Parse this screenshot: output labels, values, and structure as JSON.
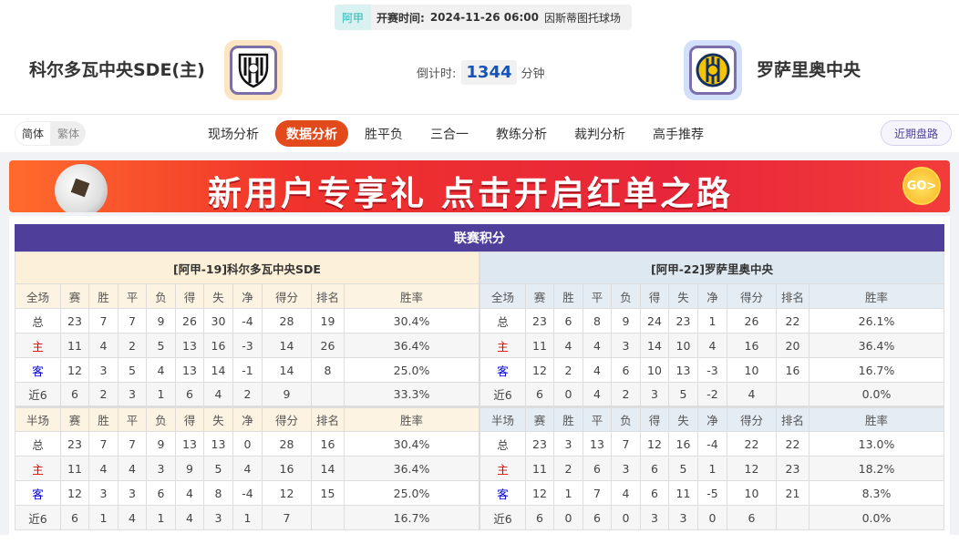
{
  "match": {
    "league": "阿甲",
    "kickoff_label": "开赛时间:",
    "kickoff": "2024-11-26 06:00",
    "venue": "因斯蒂图托球场",
    "home": "科尔多瓦中央SDE(主)",
    "away": "罗萨里奥中央",
    "countdown_label": "倒计时:",
    "countdown": "1344",
    "countdown_unit": "分钟"
  },
  "nav": {
    "lang": [
      "简体",
      "繁体"
    ],
    "tabs": [
      "现场分析",
      "数据分析",
      "胜平负",
      "三合一",
      "教练分析",
      "裁判分析",
      "高手推荐"
    ],
    "active": "数据分析",
    "recent": "近期盘路"
  },
  "banner": {
    "text": "新用户专享礼 点击开启红单之路",
    "go": "GO>"
  },
  "standings": {
    "title": "联赛积分",
    "full_headers": [
      "全场",
      "赛",
      "胜",
      "平",
      "负",
      "得",
      "失",
      "净",
      "得分",
      "排名",
      "胜率"
    ],
    "half_headers": [
      "半场",
      "赛",
      "胜",
      "平",
      "负",
      "得",
      "失",
      "净",
      "得分",
      "排名",
      "胜率"
    ],
    "home": {
      "title": "[阿甲-19]科尔多瓦中央SDE",
      "full": [
        [
          "总",
          "23",
          "7",
          "7",
          "9",
          "26",
          "30",
          "-4",
          "28",
          "19",
          "30.4%"
        ],
        [
          "主",
          "11",
          "4",
          "2",
          "5",
          "13",
          "16",
          "-3",
          "14",
          "26",
          "36.4%"
        ],
        [
          "客",
          "12",
          "3",
          "5",
          "4",
          "13",
          "14",
          "-1",
          "14",
          "8",
          "25.0%"
        ],
        [
          "近6",
          "6",
          "2",
          "3",
          "1",
          "6",
          "4",
          "2",
          "9",
          "",
          "33.3%"
        ]
      ],
      "half": [
        [
          "总",
          "23",
          "7",
          "7",
          "9",
          "13",
          "13",
          "0",
          "28",
          "16",
          "30.4%"
        ],
        [
          "主",
          "11",
          "4",
          "4",
          "3",
          "9",
          "5",
          "4",
          "16",
          "14",
          "36.4%"
        ],
        [
          "客",
          "12",
          "3",
          "3",
          "6",
          "4",
          "8",
          "-4",
          "12",
          "15",
          "25.0%"
        ],
        [
          "近6",
          "6",
          "1",
          "4",
          "1",
          "4",
          "3",
          "1",
          "7",
          "",
          "16.7%"
        ]
      ]
    },
    "away": {
      "title": "[阿甲-22]罗萨里奥中央",
      "full": [
        [
          "总",
          "23",
          "6",
          "8",
          "9",
          "24",
          "23",
          "1",
          "26",
          "22",
          "26.1%"
        ],
        [
          "主",
          "11",
          "4",
          "4",
          "3",
          "14",
          "10",
          "4",
          "16",
          "20",
          "36.4%"
        ],
        [
          "客",
          "12",
          "2",
          "4",
          "6",
          "10",
          "13",
          "-3",
          "10",
          "16",
          "16.7%"
        ],
        [
          "近6",
          "6",
          "0",
          "4",
          "2",
          "3",
          "5",
          "-2",
          "4",
          "",
          "0.0%"
        ]
      ],
      "half": [
        [
          "总",
          "23",
          "3",
          "13",
          "7",
          "12",
          "16",
          "-4",
          "22",
          "22",
          "13.0%"
        ],
        [
          "主",
          "11",
          "2",
          "6",
          "3",
          "6",
          "5",
          "1",
          "12",
          "23",
          "18.2%"
        ],
        [
          "客",
          "12",
          "1",
          "7",
          "4",
          "6",
          "11",
          "-5",
          "10",
          "21",
          "8.3%"
        ],
        [
          "近6",
          "6",
          "0",
          "6",
          "0",
          "3",
          "3",
          "0",
          "6",
          "",
          "0.0%"
        ]
      ]
    }
  },
  "colors": {
    "accent": "#e24a1c",
    "header": "#4f3f9b",
    "home_label": "#e00000",
    "away_label": "#0000cc"
  }
}
